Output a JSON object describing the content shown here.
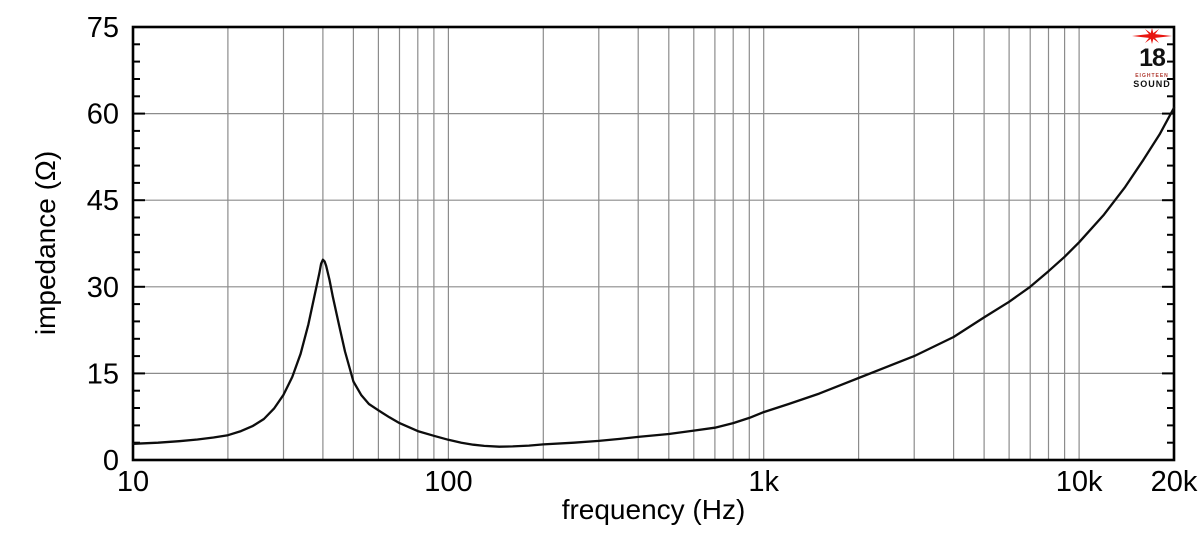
{
  "figure": {
    "background": "#ffffff",
    "grid_color": "#8c8c8c",
    "axis_color": "#000000"
  },
  "chart_data": {
    "type": "line",
    "title": "",
    "xlabel": "frequency (Hz)",
    "ylabel": "impedance (Ω)",
    "x_scale": "log",
    "xlim": [
      10,
      20000
    ],
    "ylim": [
      0,
      75
    ],
    "xticks": [
      {
        "value": 10,
        "label": "10"
      },
      {
        "value": 100,
        "label": "100"
      },
      {
        "value": 1000,
        "label": "1k"
      },
      {
        "value": 10000,
        "label": "10k"
      },
      {
        "value": 20000,
        "label": "20k"
      }
    ],
    "yticks": [
      {
        "value": 0,
        "label": "0"
      },
      {
        "value": 15,
        "label": "15"
      },
      {
        "value": 30,
        "label": "30"
      },
      {
        "value": 45,
        "label": "45"
      },
      {
        "value": 60,
        "label": "60"
      },
      {
        "value": 75,
        "label": "75"
      }
    ],
    "y_minor_tick_step": 3,
    "y_gridlines": [
      15,
      30,
      45,
      60
    ],
    "x_gridlines": [
      20,
      30,
      40,
      50,
      60,
      70,
      80,
      90,
      100,
      200,
      300,
      400,
      500,
      600,
      700,
      800,
      900,
      1000,
      2000,
      3000,
      4000,
      5000,
      6000,
      7000,
      8000,
      9000,
      10000
    ],
    "grid_on": true,
    "legend": "none",
    "resonance_peak": {
      "frequency_hz": 40,
      "impedance_ohm": 34.7
    },
    "series": [
      {
        "name": "impedance",
        "color": "#0d0d0d",
        "points": [
          [
            10,
            2.8
          ],
          [
            12,
            3.0
          ],
          [
            14,
            3.25
          ],
          [
            16,
            3.55
          ],
          [
            18,
            3.9
          ],
          [
            20,
            4.3
          ],
          [
            22,
            5.0
          ],
          [
            24,
            5.9
          ],
          [
            26,
            7.1
          ],
          [
            28,
            8.9
          ],
          [
            30,
            11.3
          ],
          [
            32,
            14.4
          ],
          [
            34,
            18.4
          ],
          [
            36,
            23.5
          ],
          [
            38,
            29.5
          ],
          [
            39,
            32.4
          ],
          [
            39.5,
            34.0
          ],
          [
            40,
            34.7
          ],
          [
            40.5,
            34.4
          ],
          [
            41,
            33.6
          ],
          [
            42,
            31.2
          ],
          [
            43,
            28.3
          ],
          [
            45,
            23.4
          ],
          [
            47,
            18.8
          ],
          [
            50,
            13.6
          ],
          [
            53,
            11.2
          ],
          [
            56,
            9.7
          ],
          [
            60,
            8.6
          ],
          [
            65,
            7.4
          ],
          [
            70,
            6.4
          ],
          [
            80,
            5.0
          ],
          [
            90,
            4.2
          ],
          [
            100,
            3.5
          ],
          [
            110,
            3.0
          ],
          [
            120,
            2.65
          ],
          [
            130,
            2.45
          ],
          [
            145,
            2.3
          ],
          [
            160,
            2.35
          ],
          [
            180,
            2.5
          ],
          [
            200,
            2.7
          ],
          [
            250,
            3.0
          ],
          [
            300,
            3.3
          ],
          [
            350,
            3.65
          ],
          [
            400,
            4.0
          ],
          [
            500,
            4.5
          ],
          [
            600,
            5.1
          ],
          [
            700,
            5.6
          ],
          [
            800,
            6.4
          ],
          [
            900,
            7.3
          ],
          [
            1000,
            8.3
          ],
          [
            1200,
            9.7
          ],
          [
            1500,
            11.5
          ],
          [
            2000,
            14.2
          ],
          [
            2500,
            16.3
          ],
          [
            3000,
            18.0
          ],
          [
            4000,
            21.3
          ],
          [
            5000,
            24.7
          ],
          [
            6000,
            27.4
          ],
          [
            7000,
            30.0
          ],
          [
            8000,
            32.7
          ],
          [
            9000,
            35.2
          ],
          [
            10000,
            37.7
          ],
          [
            12000,
            42.5
          ],
          [
            14000,
            47.3
          ],
          [
            16000,
            52.0
          ],
          [
            18000,
            56.4
          ],
          [
            20000,
            61.0
          ]
        ]
      }
    ]
  },
  "logo": {
    "number": "18",
    "brand_small": "EIGHTEEN",
    "brand": "SOUND",
    "star_color": "#e8150f"
  }
}
